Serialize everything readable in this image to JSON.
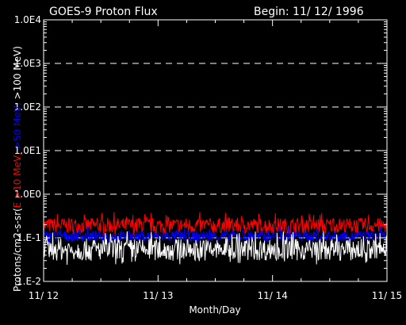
{
  "chart_data": {
    "type": "line",
    "title": "GOES-9 Proton Flux",
    "begin_label": "Begin: 11/ 12/ 1996",
    "xlabel": "Month/Day",
    "ylabel_parts": [
      {
        "text": "Protons/cm2-s-sr(",
        "color": "#ffffff"
      },
      {
        "text": "E >10 MeV, ",
        "color": "#ff0000"
      },
      {
        "text": ">50 MeV, ",
        "color": "#0000ff"
      },
      {
        "text": ">100 MeV)",
        "color": "#ffffff"
      }
    ],
    "y_scale": "log",
    "ylim": [
      0.01,
      10000
    ],
    "y_ticks": [
      {
        "value": 10000,
        "label": "1.0E4"
      },
      {
        "value": 1000,
        "label": "1.0E3"
      },
      {
        "value": 100,
        "label": "1.0E2"
      },
      {
        "value": 10,
        "label": "1.0E1"
      },
      {
        "value": 1,
        "label": "1.0E0"
      },
      {
        "value": 0.1,
        "label": "1.E-1"
      },
      {
        "value": 0.01,
        "label": "1.E-2"
      }
    ],
    "x_ticks": [
      "11/ 12",
      "11/ 13",
      "11/ 14",
      "11/ 15"
    ],
    "x_range_days": [
      0,
      3
    ],
    "grid": "dashed horizontal at each decade",
    "series": [
      {
        "color": "#ff0000",
        "baseline": 0.17,
        "spread": 0.35
      },
      {
        "color": "#0000ff",
        "baseline": 0.1,
        "spread": 0.25
      },
      {
        "color": "#ffffff",
        "baseline": 0.045,
        "spread": 0.5
      }
    ]
  }
}
